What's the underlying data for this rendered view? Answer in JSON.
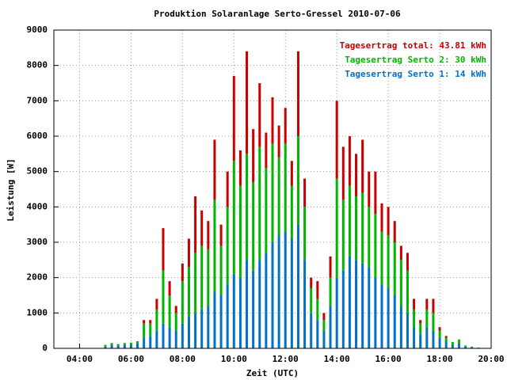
{
  "chart_data": {
    "type": "stacked_impulse",
    "title": "Produktion Solaranlage Serto-Gressel 2010-07-06",
    "xlabel": "Zeit (UTC)",
    "ylabel": "Leistung [W]",
    "x": [
      5.0,
      5.25,
      5.5,
      5.75,
      6.0,
      6.25,
      6.5,
      6.75,
      7.0,
      7.25,
      7.5,
      7.75,
      8.0,
      8.25,
      8.5,
      8.75,
      9.0,
      9.25,
      9.5,
      9.75,
      10.0,
      10.25,
      10.5,
      10.75,
      11.0,
      11.25,
      11.5,
      11.75,
      12.0,
      12.25,
      12.5,
      12.75,
      13.0,
      13.25,
      13.5,
      13.75,
      14.0,
      14.25,
      14.5,
      14.75,
      15.0,
      15.25,
      15.5,
      15.75,
      16.0,
      16.25,
      16.5,
      16.75,
      17.0,
      17.25,
      17.5,
      17.75,
      18.0,
      18.25,
      18.5,
      18.75,
      19.0,
      19.25,
      19.5
    ],
    "series": [
      {
        "name": "Tagesertrag Serto 1: 14 kWh",
        "color": "#0070c8",
        "values": [
          50,
          100,
          80,
          100,
          100,
          150,
          300,
          350,
          500,
          700,
          600,
          500,
          700,
          900,
          1000,
          1100,
          1200,
          1600,
          1500,
          1800,
          2100,
          2000,
          2500,
          2200,
          2500,
          2700,
          3000,
          3200,
          3300,
          3100,
          3500,
          2500,
          1000,
          800,
          500,
          1200,
          2000,
          2200,
          2600,
          2500,
          2400,
          2300,
          2000,
          1800,
          1700,
          1500,
          1200,
          1000,
          600,
          400,
          600,
          500,
          300,
          200,
          100,
          150,
          50,
          30,
          20
        ]
      },
      {
        "name": "Tagesertrag Serto 2: 30 kWh",
        "color": "#00b400",
        "values": [
          50,
          50,
          40,
          50,
          60,
          50,
          400,
          350,
          600,
          1500,
          900,
          500,
          1200,
          1400,
          1700,
          1800,
          1600,
          2600,
          1400,
          2200,
          3200,
          2600,
          3000,
          2500,
          3200,
          2400,
          2800,
          2200,
          2500,
          1500,
          2500,
          1500,
          700,
          600,
          300,
          800,
          2800,
          2000,
          2000,
          1800,
          2000,
          1700,
          1800,
          1500,
          1500,
          1500,
          1300,
          1200,
          500,
          300,
          500,
          500,
          200,
          100,
          80,
          100,
          30,
          20,
          0
        ]
      },
      {
        "name": "Tagesertrag total: 43.81 kWh",
        "color": "#c80000",
        "values": [
          0,
          0,
          0,
          0,
          0,
          0,
          100,
          100,
          300,
          1200,
          400,
          200,
          500,
          800,
          1600,
          1000,
          800,
          1700,
          600,
          1000,
          2400,
          1000,
          2900,
          1500,
          1800,
          1000,
          1300,
          900,
          1000,
          700,
          2400,
          800,
          300,
          500,
          200,
          600,
          2200,
          1500,
          1400,
          1200,
          1500,
          1000,
          1200,
          800,
          800,
          600,
          400,
          500,
          300,
          100,
          300,
          400,
          100,
          50,
          0,
          0,
          0,
          0,
          0
        ]
      }
    ],
    "xlim": [
      3,
      20
    ],
    "xticks": [
      {
        "value": 4,
        "label": "04:00"
      },
      {
        "value": 6,
        "label": "06:00"
      },
      {
        "value": 8,
        "label": "08:00"
      },
      {
        "value": 10,
        "label": "10:00"
      },
      {
        "value": 12,
        "label": "12:00"
      },
      {
        "value": 14,
        "label": "14:00"
      },
      {
        "value": 16,
        "label": "16:00"
      },
      {
        "value": 18,
        "label": "18:00"
      },
      {
        "value": 20,
        "label": "20:00"
      }
    ],
    "ylim": [
      0,
      9000
    ],
    "yticks": [
      0,
      1000,
      2000,
      3000,
      4000,
      5000,
      6000,
      7000,
      8000,
      9000
    ],
    "grid": true,
    "legend": "upper right"
  }
}
